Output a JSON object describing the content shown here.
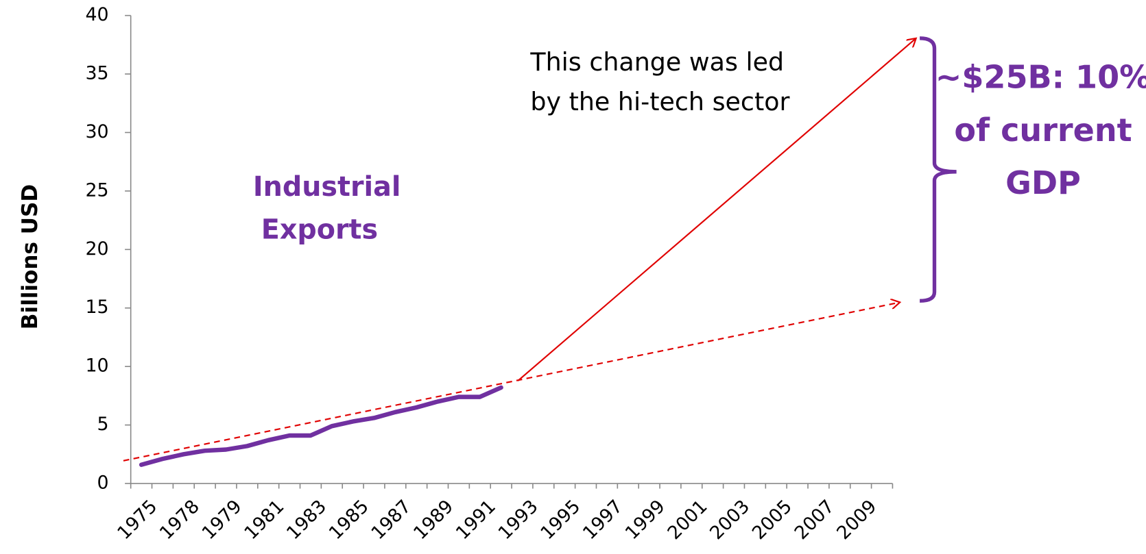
{
  "chart_data": {
    "type": "line",
    "y_label": "Billions USD",
    "categories": [
      "1975",
      null,
      "1978",
      null,
      "1979",
      null,
      "1981",
      null,
      "1983",
      null,
      "1985",
      null,
      "1987",
      null,
      "1989",
      null,
      "1991",
      null,
      "1993",
      null,
      "1995",
      null,
      "1997",
      null,
      "1999",
      null,
      "2001",
      null,
      "2003",
      null,
      "2005",
      null,
      "2007",
      null,
      "2009",
      null
    ],
    "series": [
      {
        "name": "Industrial Exports",
        "color": "#7030a0",
        "values": [
          1.6,
          2.1,
          2.5,
          2.8,
          2.9,
          3.2,
          3.7,
          4.1,
          4.1,
          4.9,
          5.3,
          5.6,
          6.1,
          6.5,
          7.0,
          7.4,
          7.4,
          8.2,
          null,
          null,
          null,
          null,
          null,
          null,
          null,
          null,
          null,
          null,
          null,
          null,
          null,
          null,
          null,
          null,
          null,
          null
        ]
      }
    ],
    "ylim": [
      0,
      40
    ],
    "yticks": [
      0,
      5,
      10,
      15,
      20,
      25,
      30,
      35,
      40
    ],
    "annotations": {
      "series_label": [
        "Industrial",
        "Exports"
      ],
      "note": [
        "This change was led",
        "by the hi-tech sector"
      ],
      "brace_label": [
        "~$25B: 10%",
        "of current",
        "GDP"
      ]
    }
  }
}
